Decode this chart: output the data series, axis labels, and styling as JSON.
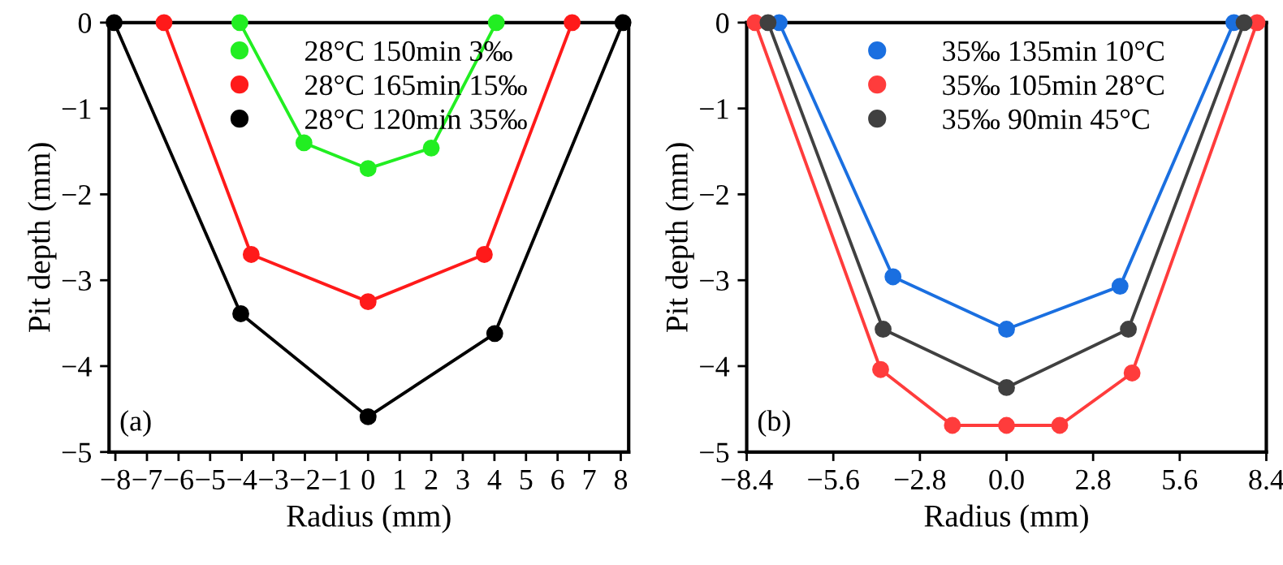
{
  "chart_data": [
    {
      "type": "line",
      "xlabel": "Radius (mm)",
      "ylabel": "Pit depth (mm)",
      "annotations": [
        "(a)"
      ],
      "xlim": [
        -8.2,
        8.25
      ],
      "ylim": [
        -5,
        0
      ],
      "xticks": [
        -8,
        -7,
        -6,
        -5,
        -4,
        -3,
        -2,
        -1,
        0,
        1,
        2,
        3,
        4,
        5,
        6,
        7,
        8
      ],
      "yticks": [
        -5,
        -4,
        -3,
        -2,
        -1,
        0
      ],
      "marker": "circle",
      "line_style": "solid",
      "legend": "top",
      "grid": false,
      "series": [
        {
          "name": "28°C 150min 3‰",
          "color": "#22ee22",
          "x": [
            -4.06,
            -2.03,
            0,
            2.0,
            4.06
          ],
          "values": [
            0,
            -1.4,
            -1.7,
            -1.46,
            0
          ]
        },
        {
          "name": "28°C 165min 15‰",
          "color": "#ff1a1a",
          "x": [
            -6.46,
            -3.7,
            0,
            3.68,
            6.46
          ],
          "values": [
            0,
            -2.7,
            -3.25,
            -2.7,
            0
          ]
        },
        {
          "name": "28°C 120min 35‰",
          "color": "#000000",
          "x": [
            -8.04,
            -4.03,
            0,
            4.01,
            8.07
          ],
          "values": [
            0,
            -3.39,
            -4.59,
            -3.62,
            0
          ]
        }
      ]
    },
    {
      "type": "line",
      "xlabel": "Radius (mm)",
      "ylabel": "Pit depth (mm)",
      "annotations": [
        "(b)"
      ],
      "xlim": [
        -8.4,
        8.4
      ],
      "ylim": [
        -5,
        0
      ],
      "xticks": [
        {
          "value": -8.4,
          "label": "−8.4"
        },
        {
          "value": -5.6,
          "label": "−5.6"
        },
        {
          "value": -2.8,
          "label": "−2.8"
        },
        {
          "value": 0,
          "label": "0.0"
        },
        2.8,
        5.6,
        8.4
      ],
      "yticks": [
        -5,
        -4,
        -3,
        -2,
        -1,
        0
      ],
      "marker": "circle",
      "line_style": "solid",
      "legend": "top",
      "grid": false,
      "series": [
        {
          "name": "35‰ 135min 10°C",
          "color": "#1a6fe0",
          "x": [
            -7.35,
            -3.67,
            0,
            3.67,
            7.35
          ],
          "values": [
            0,
            -2.96,
            -3.57,
            -3.07,
            0
          ]
        },
        {
          "name": "35‰ 105min 28°C",
          "color": "#ff3c3c",
          "x": [
            -8.13,
            -4.07,
            -1.75,
            0,
            1.72,
            4.06,
            8.1
          ],
          "values": [
            0,
            -4.04,
            -4.69,
            -4.69,
            -4.69,
            -4.08,
            0
          ]
        },
        {
          "name": "35‰ 90min 45°C",
          "color": "#404040",
          "x": [
            -7.71,
            -3.99,
            0,
            3.94,
            7.68
          ],
          "values": [
            0,
            -3.57,
            -4.25,
            -3.57,
            0
          ]
        }
      ]
    }
  ]
}
